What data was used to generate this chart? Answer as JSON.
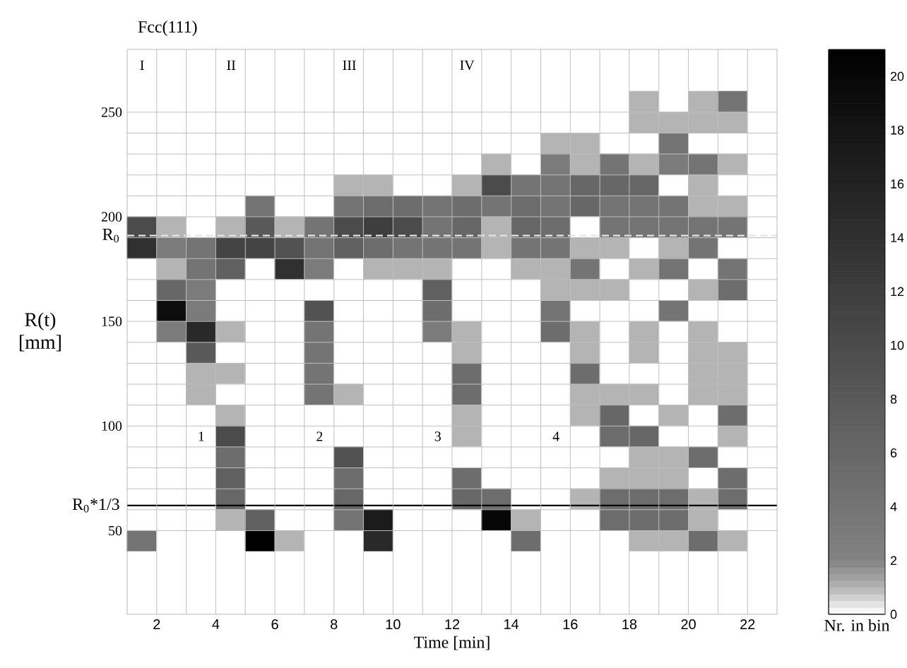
{
  "chart_data": {
    "type": "heatmap",
    "title": "Fcc(111)",
    "xlabel": "Time [min]",
    "ylabel": "R(t) [mm]",
    "clabel": "Nr. in bin",
    "xlim": [
      1,
      23
    ],
    "xticks": [
      2,
      4,
      6,
      8,
      10,
      12,
      14,
      16,
      18,
      20,
      22
    ],
    "ylim": [
      10,
      280
    ],
    "yticks": [
      50,
      100,
      150,
      200,
      250
    ],
    "clim": [
      0,
      21
    ],
    "cticks": [
      0,
      2,
      4,
      6,
      8,
      10,
      12,
      14,
      16,
      18,
      20
    ],
    "grid": true,
    "cells": [
      [
        0,
        0,
        0,
        0,
        0,
        0,
        0,
        0,
        0,
        0,
        0,
        0,
        0,
        0,
        0,
        0,
        0,
        0,
        0,
        0,
        0,
        0
      ],
      [
        0,
        0,
        0,
        0,
        0,
        0,
        0,
        0,
        0,
        0,
        0,
        0,
        0,
        0,
        0,
        0,
        0,
        0,
        0,
        0,
        0,
        0
      ],
      [
        0,
        0,
        0,
        0,
        0,
        0,
        0,
        0,
        0,
        0,
        0,
        0,
        0,
        0,
        0,
        0,
        0,
        1,
        0,
        1,
        4,
        0
      ],
      [
        0,
        0,
        0,
        0,
        0,
        0,
        0,
        0,
        0,
        0,
        0,
        0,
        0,
        0,
        0,
        0,
        0,
        1,
        1,
        1,
        1,
        0
      ],
      [
        0,
        0,
        0,
        0,
        0,
        0,
        0,
        0,
        0,
        0,
        0,
        0,
        0,
        0,
        1,
        1,
        0,
        0,
        4,
        0,
        0,
        0
      ],
      [
        0,
        0,
        0,
        0,
        0,
        0,
        0,
        0,
        0,
        0,
        0,
        0,
        1,
        0,
        3,
        1,
        4,
        1,
        3,
        4,
        1,
        0
      ],
      [
        0,
        0,
        0,
        0,
        0,
        0,
        0,
        1,
        1,
        0,
        0,
        1,
        10,
        4,
        4,
        6,
        6,
        6,
        0,
        1,
        0,
        0
      ],
      [
        0,
        0,
        0,
        0,
        4,
        0,
        0,
        4,
        5,
        5,
        4,
        5,
        4,
        5,
        4,
        6,
        4,
        4,
        4,
        1,
        1,
        0
      ],
      [
        10,
        1,
        0,
        1,
        8,
        1,
        4,
        10,
        12,
        10,
        4,
        6,
        1,
        6,
        5,
        0,
        4,
        4,
        4,
        4,
        4,
        0
      ],
      [
        14,
        3,
        4,
        11,
        11,
        9,
        4,
        7,
        5,
        4,
        4,
        4,
        1,
        4,
        4,
        1,
        1,
        0,
        1,
        4,
        0,
        0
      ],
      [
        0,
        1,
        4,
        7,
        0,
        14,
        3,
        0,
        1,
        1,
        1,
        0,
        0,
        1,
        1,
        4,
        0,
        1,
        4,
        0,
        4,
        0
      ],
      [
        0,
        6,
        3,
        0,
        0,
        0,
        0,
        0,
        0,
        0,
        7,
        0,
        0,
        0,
        1,
        1,
        1,
        0,
        0,
        1,
        5,
        0
      ],
      [
        0,
        19,
        3,
        0,
        0,
        0,
        9,
        0,
        0,
        0,
        5,
        0,
        0,
        0,
        4,
        0,
        0,
        0,
        4,
        0,
        0,
        0
      ],
      [
        0,
        3,
        15,
        1,
        0,
        0,
        4,
        0,
        0,
        0,
        3,
        1,
        0,
        0,
        5,
        1,
        0,
        1,
        0,
        1,
        0,
        0
      ],
      [
        0,
        0,
        8,
        0,
        0,
        0,
        4,
        0,
        0,
        0,
        0,
        1,
        0,
        0,
        0,
        1,
        0,
        1,
        0,
        1,
        1,
        0
      ],
      [
        0,
        0,
        1,
        1,
        0,
        0,
        4,
        0,
        0,
        0,
        0,
        5,
        0,
        0,
        0,
        5,
        0,
        0,
        0,
        1,
        1,
        0
      ],
      [
        0,
        0,
        1,
        0,
        0,
        0,
        4,
        1,
        0,
        0,
        0,
        5,
        0,
        0,
        0,
        1,
        1,
        1,
        0,
        1,
        1,
        0
      ],
      [
        0,
        0,
        0,
        1,
        0,
        0,
        0,
        0,
        0,
        0,
        0,
        1,
        0,
        0,
        0,
        1,
        6,
        0,
        1,
        0,
        5,
        0
      ],
      [
        0,
        0,
        0,
        10,
        0,
        0,
        0,
        0,
        0,
        0,
        0,
        1,
        0,
        0,
        0,
        0,
        5,
        6,
        0,
        0,
        1,
        0
      ],
      [
        0,
        0,
        0,
        5,
        0,
        0,
        0,
        9,
        0,
        0,
        0,
        0,
        0,
        0,
        0,
        0,
        0,
        1,
        1,
        5,
        0,
        0
      ],
      [
        0,
        0,
        0,
        7,
        0,
        0,
        0,
        5,
        0,
        0,
        0,
        5,
        0,
        0,
        0,
        0,
        1,
        1,
        1,
        0,
        5,
        0
      ],
      [
        0,
        0,
        0,
        6,
        0,
        0,
        0,
        6,
        0,
        0,
        0,
        6,
        5,
        0,
        0,
        1,
        5,
        5,
        5,
        1,
        5,
        0
      ],
      [
        0,
        0,
        0,
        1,
        7,
        0,
        0,
        4,
        17,
        0,
        0,
        0,
        20,
        1,
        0,
        0,
        5,
        5,
        5,
        1,
        0,
        0
      ],
      [
        4,
        0,
        0,
        0,
        21,
        1,
        0,
        0,
        15,
        0,
        0,
        0,
        0,
        5,
        0,
        0,
        0,
        1,
        1,
        5,
        1,
        0
      ],
      [
        0,
        0,
        0,
        0,
        0,
        0,
        0,
        0,
        0,
        0,
        0,
        0,
        0,
        0,
        0,
        0,
        0,
        0,
        0,
        0,
        0,
        0
      ],
      [
        0,
        0,
        0,
        0,
        0,
        0,
        0,
        0,
        0,
        0,
        0,
        0,
        0,
        0,
        0,
        0,
        0,
        0,
        0,
        0,
        0,
        0
      ],
      [
        0,
        0,
        0,
        0,
        0,
        0,
        0,
        0,
        0,
        0,
        0,
        0,
        0,
        0,
        0,
        0,
        0,
        0,
        0,
        0,
        0,
        0
      ]
    ],
    "ref_lines": [
      {
        "axis": "y",
        "value": 191,
        "label": "R$_{0}$",
        "color": "#e6e6e6",
        "line_style": "dashed"
      },
      {
        "axis": "y",
        "value": 62,
        "label": "R$_{0}$*1/3",
        "color": "#000000",
        "line_style": "solid"
      }
    ],
    "annotations": [
      "I",
      "II",
      "III",
      "IV",
      "1",
      "2",
      "3",
      "4"
    ]
  }
}
